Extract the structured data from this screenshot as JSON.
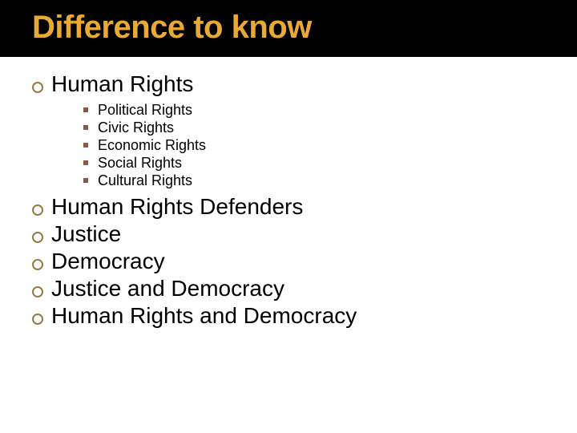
{
  "title": "Difference to know",
  "title_color": "#e8a935",
  "title_bg": "#000000",
  "title_fontsize": 40,
  "main_bullet_border_color": "#987a3f",
  "sub_bullet_color": "#8a5a44",
  "main_fontsize": 28,
  "sub_fontsize": 18,
  "text_color": "#000000",
  "background_color": "#ffffff",
  "items": [
    {
      "label": "Human Rights",
      "sub": [
        "Political Rights",
        "Civic Rights",
        "Economic Rights",
        "Social Rights",
        "Cultural Rights"
      ]
    },
    {
      "label": "Human Rights Defenders"
    },
    {
      "label": "Justice"
    },
    {
      "label": "Democracy"
    },
    {
      "label": "Justice and Democracy"
    },
    {
      "label": "Human Rights and Democracy"
    }
  ]
}
